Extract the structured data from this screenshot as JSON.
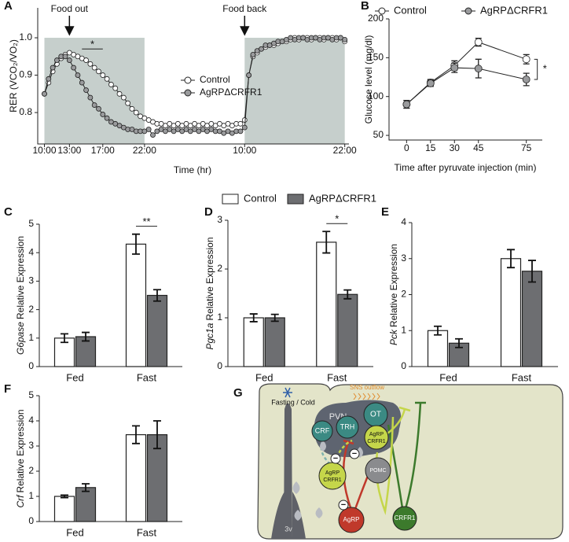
{
  "chart_data": [
    {
      "type": "line",
      "panel_label": "A",
      "ylabel": "RER (VCO₂/VO₂)",
      "xlabel": "Time (hr)",
      "x": [
        0,
        0.5,
        1,
        1.5,
        2,
        2.5,
        3,
        3.5,
        4,
        4.5,
        5,
        5.5,
        6,
        6.5,
        7,
        7.5,
        8,
        8.5,
        9,
        9.5,
        10,
        10.5,
        11,
        11.5,
        12,
        12.5,
        13,
        13.5,
        14,
        14.5,
        15,
        15.5,
        16,
        16.5,
        17,
        17.5,
        18,
        18.5,
        19,
        19.5,
        20,
        20.5,
        21,
        21.5,
        22,
        22.5,
        23,
        23.5,
        24,
        24.5,
        25,
        25.5,
        26,
        26.5,
        27,
        27.5,
        28,
        28.5,
        29,
        29.5,
        30,
        30.5,
        31,
        31.5,
        32,
        32.5,
        33,
        33.5,
        34,
        34.5,
        35,
        35.5,
        36
      ],
      "xlim": [
        -0.8,
        36.5
      ],
      "xticks": [
        {
          "value": 0,
          "label": "10:00"
        },
        {
          "value": 3,
          "label": "13:00"
        },
        {
          "value": 7,
          "label": "17:00"
        },
        {
          "value": 12,
          "label": "22:00"
        },
        {
          "value": 24,
          "label": "10:00"
        },
        {
          "value": 36,
          "label": "22:00"
        }
      ],
      "ylim": [
        0.716,
        1.08
      ],
      "yticks": [
        0.8,
        0.9,
        {
          "value": 1,
          "label": "1.0"
        }
      ],
      "shaded_spans": [
        {
          "from": 0,
          "to": 12
        },
        {
          "from": 24,
          "to": 36
        }
      ],
      "shade_top": 1,
      "shade_color": "#c6cfcc",
      "legend": "inside",
      "series": [
        {
          "name": "Control",
          "color": "#ffffff",
          "values": [
            0.85,
            0.88,
            0.91,
            0.93,
            0.945,
            0.955,
            0.96,
            0.955,
            0.95,
            0.945,
            0.94,
            0.93,
            0.92,
            0.91,
            0.9,
            0.89,
            0.875,
            0.865,
            0.85,
            0.84,
            0.825,
            0.81,
            0.8,
            0.79,
            0.785,
            0.78,
            0.775,
            0.77,
            0.77,
            0.765,
            0.77,
            0.765,
            0.77,
            0.765,
            0.77,
            0.765,
            0.77,
            0.765,
            0.77,
            0.765,
            0.77,
            0.765,
            0.77,
            0.765,
            0.77,
            0.765,
            0.77,
            0.77,
            0.78,
            0.9,
            0.95,
            0.96,
            0.97,
            0.975,
            0.98,
            0.98,
            0.985,
            0.99,
            0.99,
            0.995,
            1,
            0.995,
            1,
            1,
            0.995,
            1,
            1,
            0.995,
            1,
            1,
            0.995,
            1,
            0.99
          ]
        },
        {
          "name": "AgRPΔCRFR1",
          "color": "#9a9b9d",
          "values": [
            0.85,
            0.89,
            0.92,
            0.94,
            0.95,
            0.95,
            0.94,
            0.92,
            0.9,
            0.88,
            0.86,
            0.84,
            0.82,
            0.81,
            0.795,
            0.785,
            0.775,
            0.77,
            0.765,
            0.76,
            0.755,
            0.755,
            0.75,
            0.75,
            0.75,
            0.755,
            0.74,
            0.75,
            0.755,
            0.75,
            0.755,
            0.75,
            0.755,
            0.75,
            0.755,
            0.75,
            0.755,
            0.75,
            0.755,
            0.75,
            0.755,
            0.75,
            0.75,
            0.745,
            0.75,
            0.745,
            0.75,
            0.75,
            0.76,
            0.9,
            0.955,
            0.965,
            0.97,
            0.98,
            0.98,
            0.985,
            0.99,
            0.99,
            0.995,
            1,
            0.995,
            1,
            1,
            0.995,
            1,
            1,
            0.995,
            1,
            1,
            0.995,
            1,
            1,
            0.995
          ]
        }
      ],
      "annotations": [
        {
          "text": "Food out",
          "x": 3
        },
        {
          "text": "Food back",
          "x": 24
        }
      ],
      "significance": [
        {
          "text": "*",
          "from": 4.5,
          "to": 7,
          "y": 0.97
        }
      ]
    },
    {
      "type": "line",
      "panel_label": "B",
      "ylabel": "Glucose level (mg/dl)",
      "xlabel": "Time after pyruvate injection (min)",
      "x": [
        0,
        15,
        30,
        45,
        75
      ],
      "xlim": [
        -11,
        85
      ],
      "xticks": [
        0,
        15,
        30,
        45,
        75
      ],
      "ylim": [
        44,
        200
      ],
      "yticks": [
        50,
        100,
        150,
        200
      ],
      "legend": "top",
      "end_bracket": "*",
      "series": [
        {
          "name": "Control",
          "color": "#ffffff",
          "values": [
            90,
            118,
            140,
            170,
            148
          ],
          "errors": [
            5,
            4,
            6,
            5,
            6
          ]
        },
        {
          "name": "AgRPΔCRFR1",
          "color": "#9a9b9d",
          "values": [
            90,
            117,
            137,
            136,
            122
          ],
          "errors": [
            5,
            4,
            6,
            12,
            8
          ]
        }
      ]
    },
    {
      "type": "bar",
      "panel_label": "C",
      "ylabel_italic": "G6pase",
      "ylabel": "Relative Expression",
      "categories": [
        "Fed",
        "Fast"
      ],
      "ylim": [
        0,
        5
      ],
      "yticks": [
        0,
        1,
        2,
        3,
        4,
        5
      ],
      "series": [
        {
          "color": "#ffffff",
          "values": [
            1.0,
            4.3
          ],
          "errors": [
            0.15,
            0.35
          ]
        },
        {
          "color": "#6d6e71",
          "values": [
            1.05,
            2.5
          ],
          "errors": [
            0.15,
            0.2
          ]
        }
      ],
      "significance": [
        {
          "text": "**",
          "category": "Fast"
        }
      ]
    },
    {
      "type": "bar",
      "panel_label": "D",
      "ylabel_italic": "Pgc1a",
      "ylabel": "Relative Expression",
      "categories": [
        "Fed",
        "Fast"
      ],
      "ylim": [
        0,
        3
      ],
      "yticks": [
        0,
        1,
        2,
        3
      ],
      "legend": "top",
      "series": [
        {
          "name": "Control",
          "color": "#ffffff",
          "values": [
            1.0,
            2.55
          ],
          "errors": [
            0.08,
            0.22
          ]
        },
        {
          "name": "AgRPΔCRFR1",
          "color": "#6d6e71",
          "values": [
            1.0,
            1.48
          ],
          "errors": [
            0.07,
            0.09
          ]
        }
      ],
      "significance": [
        {
          "text": "*",
          "category": "Fast"
        }
      ]
    },
    {
      "type": "bar",
      "panel_label": "E",
      "ylabel_italic": "Pck",
      "ylabel": "Relative Expression",
      "categories": [
        "Fed",
        "Fast"
      ],
      "ylim": [
        0,
        4
      ],
      "yticks": [
        0,
        1,
        2,
        3,
        4
      ],
      "series": [
        {
          "color": "#ffffff",
          "values": [
            1.0,
            3.0
          ],
          "errors": [
            0.12,
            0.25
          ]
        },
        {
          "color": "#6d6e71",
          "values": [
            0.65,
            2.65
          ],
          "errors": [
            0.12,
            0.3
          ]
        }
      ]
    },
    {
      "type": "bar",
      "panel_label": "F",
      "ylabel_italic": "Crf",
      "ylabel": "Relative Expression",
      "categories": [
        "Fed",
        "Fast"
      ],
      "ylim": [
        0,
        5
      ],
      "yticks": [
        0,
        1,
        2,
        3,
        4,
        5
      ],
      "series": [
        {
          "color": "#ffffff",
          "values": [
            1.0,
            3.45
          ],
          "errors": [
            0.05,
            0.35
          ]
        },
        {
          "color": "#6d6e71",
          "values": [
            1.35,
            3.45
          ],
          "errors": [
            0.15,
            0.55
          ]
        }
      ]
    }
  ],
  "diagram": {
    "panel_label": "G",
    "stimulus": "Fasting / Cold",
    "output": "SNS outflow",
    "region": "PVN",
    "ventricle": "3v",
    "inhibition": "−",
    "nodes": [
      "OT",
      "TRH",
      "CRF",
      [
        "AgRP",
        "CRFR1"
      ],
      "POMC",
      [
        "AgRP",
        "CRFR1"
      ],
      "AgRP",
      "CRFR1"
    ]
  }
}
